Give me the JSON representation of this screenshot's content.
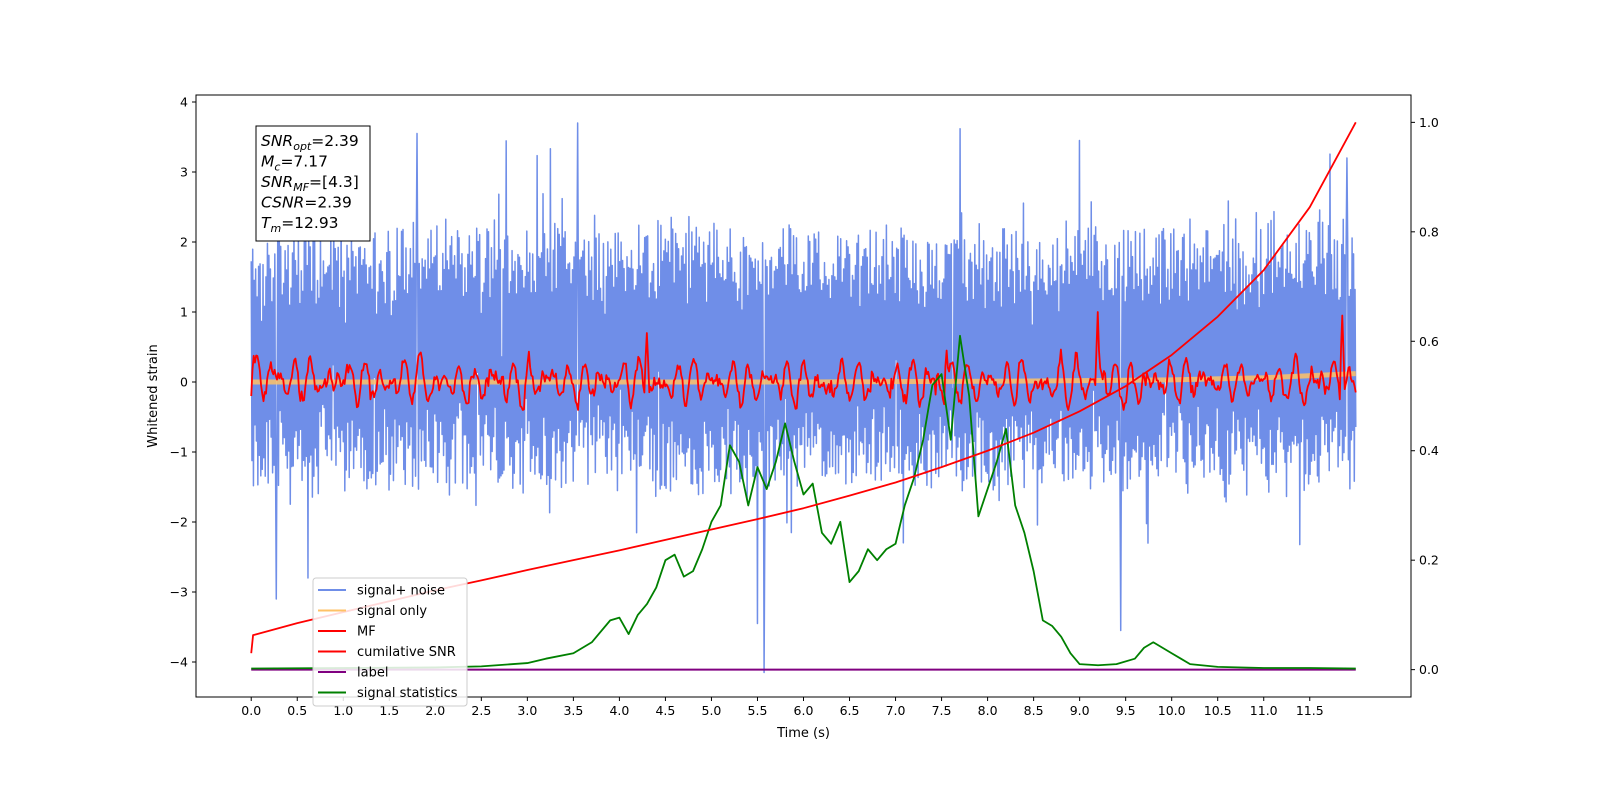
{
  "chart_data": {
    "type": "line",
    "xlabel": "Time (s)",
    "ylabel": "Whitened strain",
    "xlim": [
      -0.6,
      12.6
    ],
    "ylim": [
      -4.5,
      4.1
    ],
    "y2lim": [
      -0.05,
      1.05
    ],
    "x_ticks": [
      "0.0",
      "0.5",
      "1.0",
      "1.5",
      "2.0",
      "2.5",
      "3.0",
      "3.5",
      "4.0",
      "4.5",
      "5.0",
      "5.5",
      "6.0",
      "6.5",
      "7.0",
      "7.5",
      "8.0",
      "8.5",
      "9.0",
      "9.5",
      "10.0",
      "10.5",
      "11.0",
      "11.5"
    ],
    "y_ticks": [
      "4",
      "3",
      "2",
      "1",
      "0",
      "−1",
      "−2",
      "−3",
      "−4"
    ],
    "y2_ticks": [
      "1.0",
      "0.8",
      "0.6",
      "0.4",
      "0.2",
      "0.0"
    ],
    "info_box": [
      {
        "sym": "SNR",
        "sub": "opt",
        "value": "=2.39"
      },
      {
        "sym": "M",
        "sub": "c",
        "value": "=7.17"
      },
      {
        "sym": "SNR",
        "sub": "MF",
        "value": "=[4.3]"
      },
      {
        "sym": "CSNR",
        "sub": "",
        "value": "=2.39"
      },
      {
        "sym": "T",
        "sub": "m",
        "value": "=12.93"
      }
    ],
    "legend": {
      "position": "lower-left",
      "entries": [
        {
          "label": "signal+ noise",
          "color": "#6f8ee8"
        },
        {
          "label": "signal only",
          "color": "#ffc266"
        },
        {
          "label": "MF",
          "color": "#ff0000"
        },
        {
          "label": "cumilative SNR",
          "color": "#ff0000"
        },
        {
          "label": "label",
          "color": "#800080"
        },
        {
          "label": "signal statistics",
          "color": "#008000"
        }
      ]
    },
    "series": [
      {
        "name": "signal+ noise",
        "color": "#6f8ee8",
        "axis": "left",
        "kind": "noise-band",
        "x_range": [
          0.0,
          12.0
        ],
        "typical_range": [
          -1.5,
          2.2
        ],
        "extremes": [
          [
            1.8,
            3.55
          ],
          [
            3.55,
            3.7
          ],
          [
            9.0,
            3.45
          ],
          [
            11.9,
            3.2
          ],
          [
            5.57,
            -4.15
          ],
          [
            5.5,
            -3.45
          ],
          [
            9.45,
            -3.55
          ],
          [
            0.27,
            -3.1
          ]
        ]
      },
      {
        "name": "signal only",
        "color": "#ffc266",
        "axis": "left",
        "x": [
          0.0,
          6.0,
          8.0,
          10.0,
          11.0,
          12.0
        ],
        "y": [
          0.0,
          0.0,
          0.01,
          0.03,
          0.06,
          0.12
        ]
      },
      {
        "name": "MF",
        "color": "#ff0000",
        "axis": "left",
        "kind": "oscillation",
        "x_range": [
          0.0,
          12.0
        ],
        "typical_range": [
          -0.4,
          0.7
        ],
        "peaks": [
          [
            9.2,
            1.0
          ],
          [
            11.85,
            0.95
          ],
          [
            7.55,
            0.45
          ],
          [
            4.3,
            0.7
          ]
        ]
      },
      {
        "name": "cumilative SNR",
        "color": "#ff0000",
        "axis": "right",
        "x": [
          0.0,
          0.02,
          0.5,
          1.0,
          1.5,
          2.0,
          2.5,
          3.0,
          3.5,
          4.0,
          4.5,
          5.0,
          5.5,
          6.0,
          6.5,
          7.0,
          7.5,
          8.0,
          8.5,
          9.0,
          9.5,
          10.0,
          10.5,
          11.0,
          11.5,
          12.0
        ],
        "y": [
          0.03,
          0.063,
          0.085,
          0.105,
          0.125,
          0.145,
          0.163,
          0.182,
          0.2,
          0.218,
          0.237,
          0.256,
          0.275,
          0.295,
          0.318,
          0.342,
          0.37,
          0.4,
          0.433,
          0.472,
          0.518,
          0.575,
          0.645,
          0.73,
          0.845,
          1.0
        ]
      },
      {
        "name": "label",
        "color": "#800080",
        "axis": "right",
        "x": [
          0.0,
          12.0
        ],
        "y": [
          0.0,
          0.0
        ]
      },
      {
        "name": "signal statistics",
        "color": "#008000",
        "axis": "right",
        "x": [
          0.0,
          1.0,
          2.0,
          2.5,
          3.0,
          3.2,
          3.5,
          3.7,
          3.9,
          4.0,
          4.1,
          4.2,
          4.3,
          4.4,
          4.5,
          4.6,
          4.7,
          4.8,
          4.9,
          5.0,
          5.1,
          5.2,
          5.3,
          5.4,
          5.5,
          5.6,
          5.7,
          5.8,
          5.9,
          6.0,
          6.1,
          6.2,
          6.3,
          6.4,
          6.5,
          6.6,
          6.7,
          6.8,
          6.9,
          7.0,
          7.1,
          7.2,
          7.3,
          7.4,
          7.5,
          7.6,
          7.7,
          7.8,
          7.9,
          8.0,
          8.1,
          8.2,
          8.3,
          8.4,
          8.5,
          8.6,
          8.7,
          8.8,
          8.9,
          9.0,
          9.2,
          9.4,
          9.6,
          9.7,
          9.8,
          9.9,
          10.0,
          10.1,
          10.2,
          10.5,
          11.0,
          11.5,
          12.0
        ],
        "y": [
          0.002,
          0.003,
          0.004,
          0.006,
          0.012,
          0.02,
          0.03,
          0.05,
          0.09,
          0.095,
          0.065,
          0.1,
          0.12,
          0.15,
          0.2,
          0.21,
          0.17,
          0.18,
          0.22,
          0.27,
          0.3,
          0.41,
          0.38,
          0.3,
          0.37,
          0.33,
          0.38,
          0.45,
          0.38,
          0.32,
          0.34,
          0.25,
          0.23,
          0.27,
          0.16,
          0.18,
          0.22,
          0.2,
          0.22,
          0.23,
          0.3,
          0.35,
          0.42,
          0.52,
          0.54,
          0.42,
          0.61,
          0.5,
          0.28,
          0.33,
          0.38,
          0.44,
          0.3,
          0.25,
          0.18,
          0.09,
          0.08,
          0.06,
          0.03,
          0.01,
          0.008,
          0.01,
          0.02,
          0.04,
          0.05,
          0.04,
          0.03,
          0.02,
          0.01,
          0.005,
          0.003,
          0.003,
          0.002
        ]
      }
    ]
  }
}
